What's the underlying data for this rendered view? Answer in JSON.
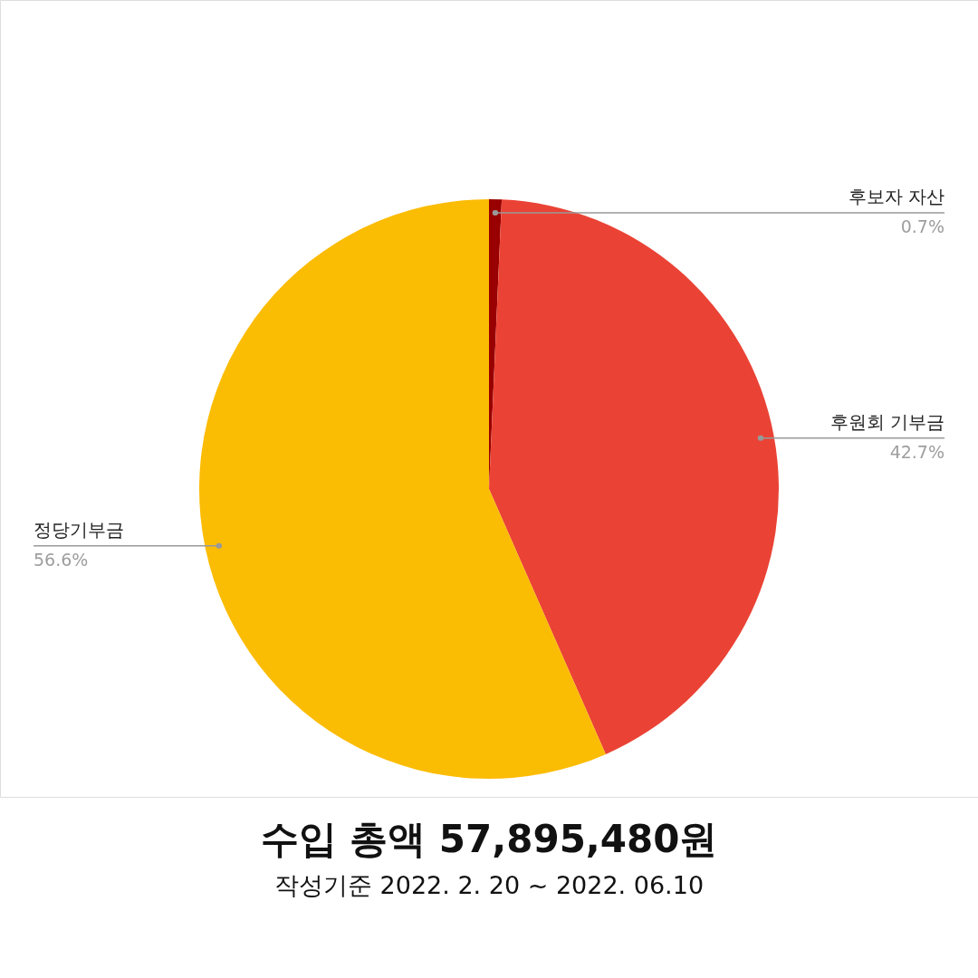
{
  "chart_data": {
    "type": "pie",
    "title": "수입 총액 57,895,480원",
    "subtitle": "작성기준 2022. 2. 20 ~ 2022. 06.10",
    "categories": [
      "후보자 자산",
      "후원회 기부금",
      "정당기부금"
    ],
    "values": [
      0.7,
      42.7,
      56.6
    ],
    "colors": [
      "#990000",
      "#ea4335",
      "#fbbc04"
    ],
    "value_labels": [
      "0.7%",
      "42.7%",
      "56.6%"
    ]
  }
}
